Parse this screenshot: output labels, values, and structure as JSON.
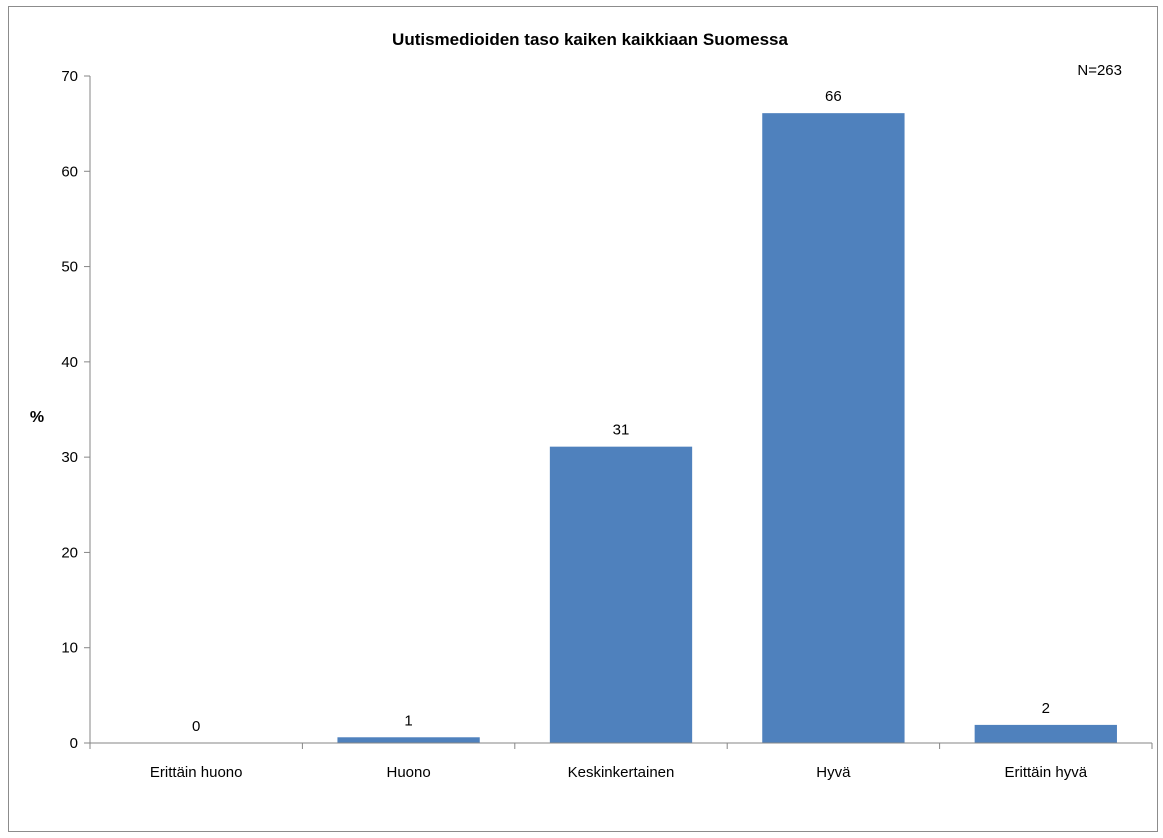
{
  "chart_data": {
    "type": "bar",
    "title": "Uutismedioiden taso kaiken kaikkiaan Suomessa",
    "ylabel": "%",
    "xlabel": "",
    "annotation": "N=263",
    "categories": [
      "Erittäin huono",
      "Huono",
      "Keskinkertainen",
      "Hyvä",
      "Erittäin hyvä"
    ],
    "values": [
      0,
      0.6,
      31.1,
      66.1,
      1.9
    ],
    "data_labels": [
      "0",
      "1",
      "31",
      "66",
      "2"
    ],
    "ylim": [
      0,
      70
    ],
    "yticks": [
      0,
      10,
      20,
      30,
      40,
      50,
      60,
      70
    ],
    "bar_color": "#4f81bd",
    "grid": false,
    "legend": "none"
  }
}
